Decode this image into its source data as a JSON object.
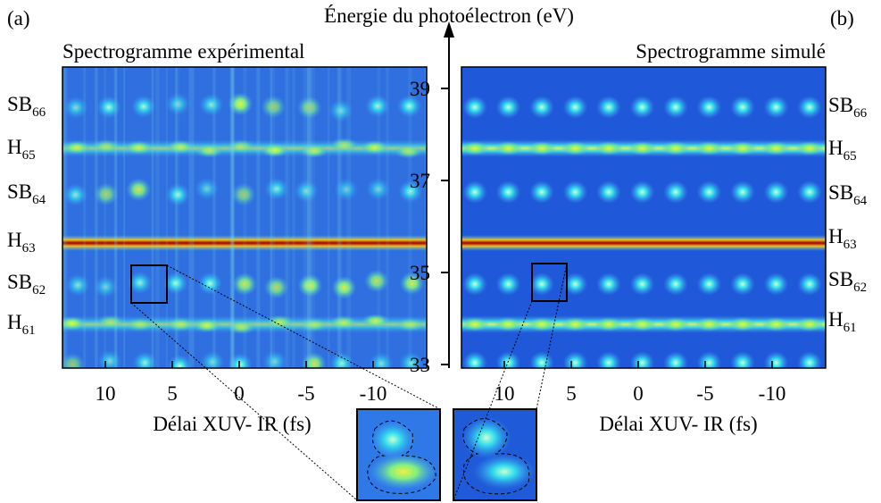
{
  "panels": [
    {
      "label": "(a)",
      "title": "Spectrogramme expérimental",
      "xlabel": "Délai XUV- IR (fs)",
      "xticks": [
        10,
        5,
        0,
        -5,
        -10
      ],
      "peaks": [
        {
          "base": "SB",
          "sub": "66"
        },
        {
          "base": "H",
          "sub": "65"
        },
        {
          "base": "SB",
          "sub": "64"
        },
        {
          "base": "H",
          "sub": "63"
        },
        {
          "base": "SB",
          "sub": "62"
        },
        {
          "base": "H",
          "sub": "61"
        }
      ]
    },
    {
      "label": "(b)",
      "title": "Spectrogramme simulé",
      "xlabel": "Délai XUV- IR (fs)",
      "xticks": [
        10,
        5,
        0,
        -5,
        -10
      ],
      "peaks": [
        {
          "base": "SB",
          "sub": "66"
        },
        {
          "base": "H",
          "sub": "65"
        },
        {
          "base": "SB",
          "sub": "64"
        },
        {
          "base": "H",
          "sub": "63"
        },
        {
          "base": "SB",
          "sub": "62"
        },
        {
          "base": "H",
          "sub": "61"
        }
      ]
    }
  ],
  "energy_axis": {
    "label": "Énergie du photoélectron (eV)",
    "ticks": [
      39,
      37,
      35,
      33
    ]
  }
}
